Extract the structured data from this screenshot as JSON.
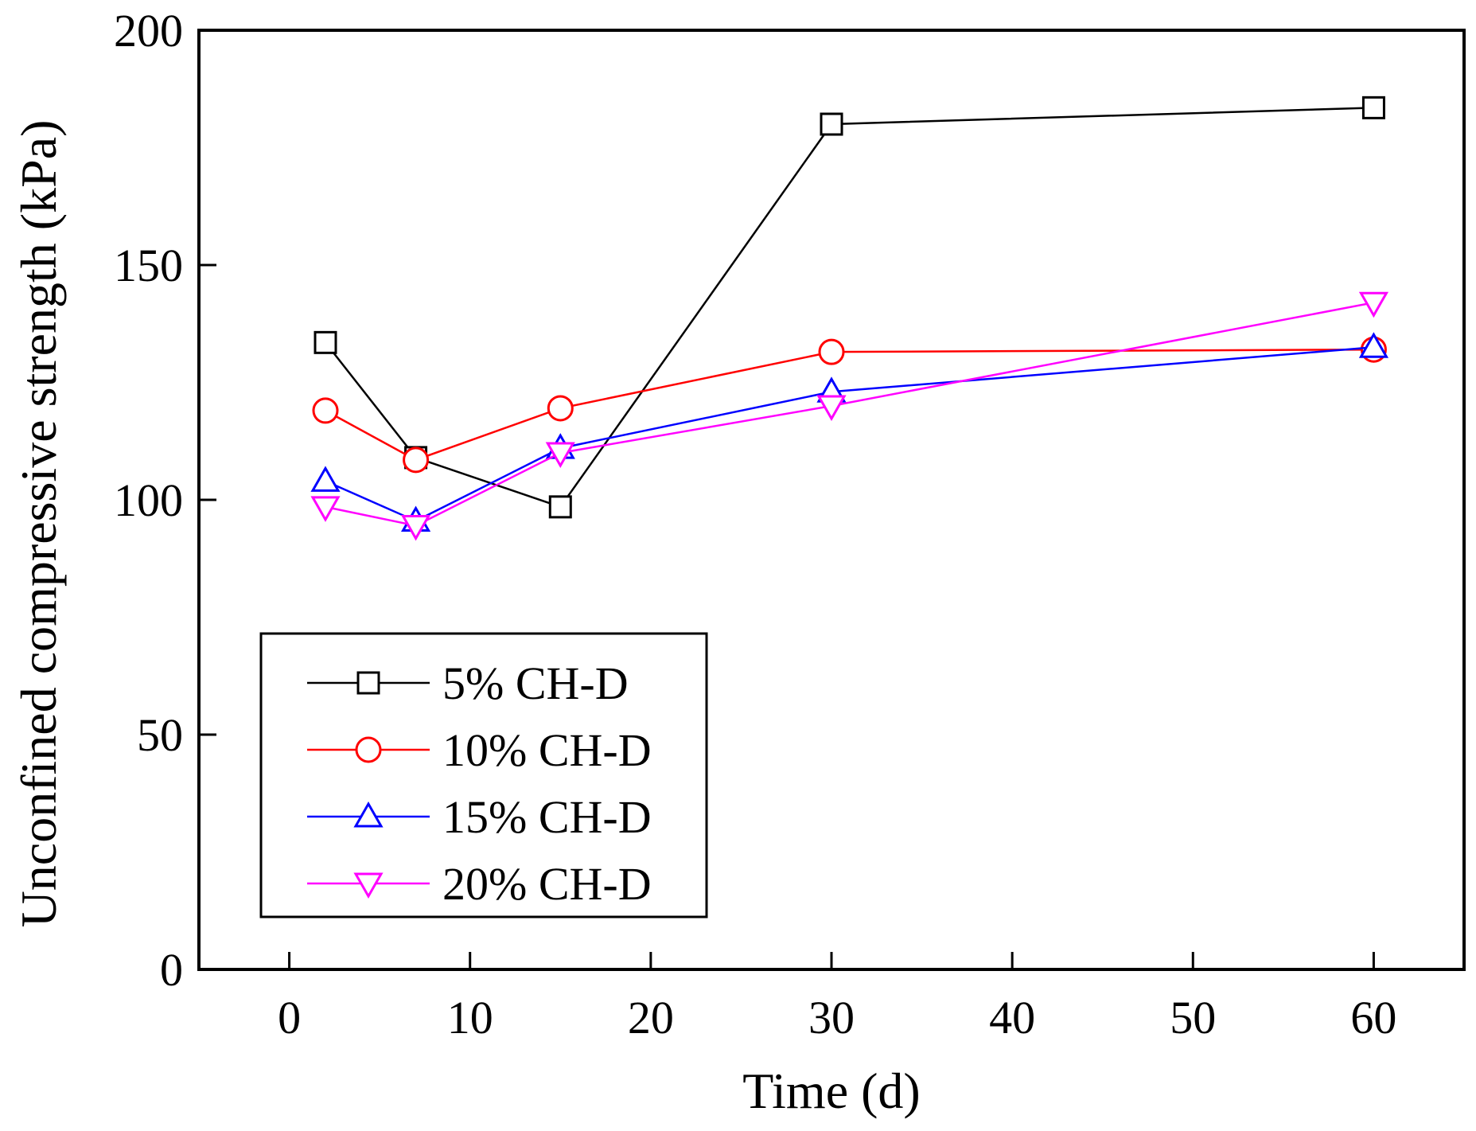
{
  "chart_data": {
    "type": "line",
    "title": "",
    "xlabel": "Time (d)",
    "ylabel": "Unconfined compressive strength (kPa)",
    "xlim": [
      -5,
      65
    ],
    "ylim": [
      0,
      200
    ],
    "xticks": [
      0,
      10,
      20,
      30,
      40,
      50,
      60
    ],
    "yticks": [
      0,
      50,
      100,
      150,
      200
    ],
    "xtick_labels": [
      "0",
      "10",
      "20",
      "30",
      "40",
      "50",
      "60"
    ],
    "ytick_labels": [
      "0",
      "50",
      "100",
      "150",
      "200"
    ],
    "grid": false,
    "legend_position": "bottom-left",
    "series": [
      {
        "name": "5% CH-D",
        "color": "#000000",
        "marker": "square",
        "x": [
          2,
          7,
          15,
          30,
          60
        ],
        "y": [
          133.5,
          109,
          98.5,
          180,
          183.5
        ]
      },
      {
        "name": "10% CH-D",
        "color": "#ff0000",
        "marker": "circle",
        "x": [
          2,
          7,
          15,
          30,
          60
        ],
        "y": [
          119,
          108.5,
          119.5,
          131.5,
          132
        ]
      },
      {
        "name": "15% CH-D",
        "color": "#0000ff",
        "marker": "triangle-up",
        "x": [
          2,
          7,
          15,
          30,
          60
        ],
        "y": [
          104,
          95.5,
          111,
          123,
          132.5
        ]
      },
      {
        "name": "20% CH-D",
        "color": "#ff00ff",
        "marker": "triangle-down",
        "x": [
          2,
          7,
          15,
          30,
          60
        ],
        "y": [
          98.5,
          94.5,
          110,
          120,
          142
        ]
      }
    ]
  }
}
